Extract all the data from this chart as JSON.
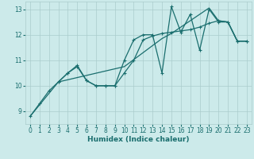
{
  "xlabel": "Humidex (Indice chaleur)",
  "bg_color": "#cceaea",
  "grid_color": "#aacccc",
  "line_color": "#1a6e6e",
  "xlim": [
    -0.5,
    23.5
  ],
  "ylim": [
    8.5,
    13.3
  ],
  "xticks": [
    0,
    1,
    2,
    3,
    4,
    5,
    6,
    7,
    8,
    9,
    10,
    11,
    12,
    13,
    14,
    15,
    16,
    17,
    18,
    19,
    20,
    21,
    22,
    23
  ],
  "yticks": [
    9,
    10,
    11,
    12,
    13
  ],
  "line1_x": [
    0,
    1,
    2,
    3,
    4,
    5,
    6,
    7,
    8,
    9,
    10,
    11,
    12,
    13,
    14,
    15,
    16,
    17,
    18,
    19,
    20,
    21,
    22,
    23
  ],
  "line1_y": [
    8.8,
    9.3,
    9.8,
    10.15,
    10.5,
    10.75,
    10.2,
    10.0,
    10.0,
    10.0,
    10.5,
    11.0,
    11.8,
    11.95,
    12.05,
    12.1,
    12.15,
    12.2,
    12.3,
    12.45,
    12.55,
    12.5,
    11.75,
    11.75
  ],
  "line2_x": [
    3,
    4,
    5,
    6,
    7,
    8,
    9,
    10,
    11,
    12,
    13,
    14,
    15,
    16,
    17,
    18,
    19,
    20,
    21,
    22,
    23
  ],
  "line2_y": [
    10.15,
    10.5,
    10.8,
    10.2,
    10.0,
    10.0,
    10.0,
    11.0,
    11.8,
    12.0,
    12.0,
    10.5,
    13.1,
    12.1,
    12.8,
    11.4,
    13.0,
    12.5,
    12.5,
    11.75,
    11.75
  ],
  "line3_x": [
    0,
    3,
    10,
    14,
    15,
    19,
    20,
    21,
    22,
    23
  ],
  "line3_y": [
    8.8,
    10.15,
    10.75,
    11.85,
    12.05,
    13.05,
    12.55,
    12.5,
    11.75,
    11.75
  ]
}
